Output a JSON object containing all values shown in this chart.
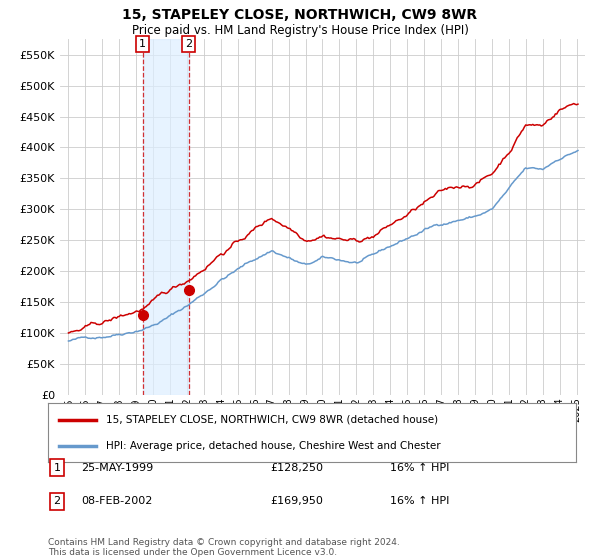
{
  "title": "15, STAPELEY CLOSE, NORTHWICH, CW9 8WR",
  "subtitle": "Price paid vs. HM Land Registry's House Price Index (HPI)",
  "ylabel_ticks": [
    0,
    50000,
    100000,
    150000,
    200000,
    250000,
    300000,
    350000,
    400000,
    450000,
    500000,
    550000
  ],
  "ylim": [
    0,
    575000
  ],
  "xlim_start": 1994.5,
  "xlim_end": 2025.5,
  "sale1_x": 1999.38,
  "sale1_y": 128250,
  "sale2_x": 2002.1,
  "sale2_y": 169950,
  "sale1_label": "25-MAY-1999",
  "sale1_price": "£128,250",
  "sale1_hpi": "16% ↑ HPI",
  "sale2_label": "08-FEB-2002",
  "sale2_price": "£169,950",
  "sale2_hpi": "16% ↑ HPI",
  "legend1": "15, STAPELEY CLOSE, NORTHWICH, CW9 8WR (detached house)",
  "legend2": "HPI: Average price, detached house, Cheshire West and Chester",
  "footer": "Contains HM Land Registry data © Crown copyright and database right 2024.\nThis data is licensed under the Open Government Licence v3.0.",
  "line_color_red": "#cc0000",
  "line_color_blue": "#6699cc",
  "fill_color_blue": "#ddeeff",
  "background_color": "#ffffff",
  "grid_color": "#cccccc"
}
